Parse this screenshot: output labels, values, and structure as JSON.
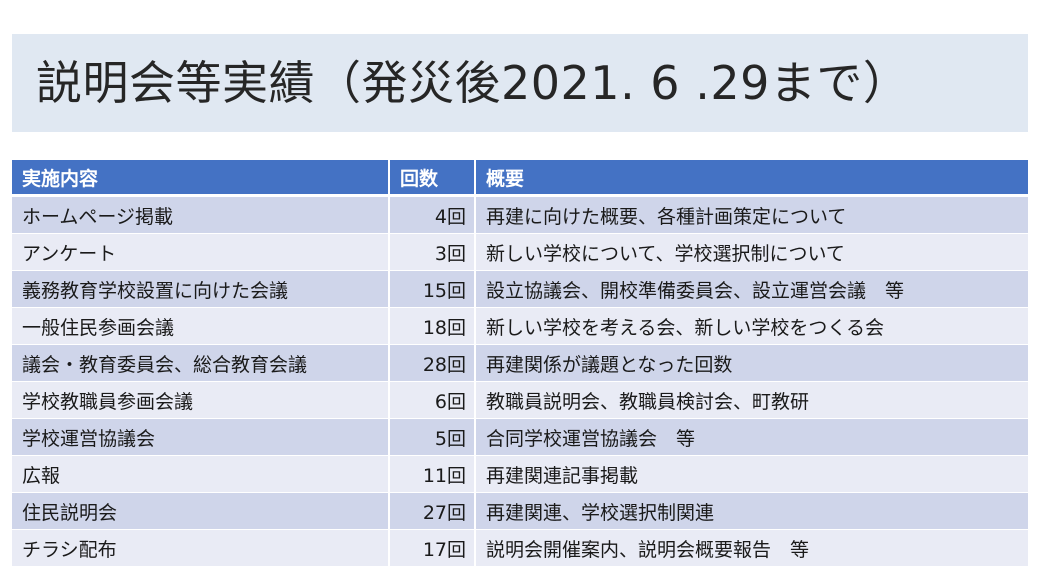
{
  "title": "説明会等実績（発災後2021. 6 .29まで）",
  "table": {
    "headers": [
      "実施内容",
      "回数",
      "概要"
    ],
    "rows": [
      {
        "item": "ホームページ掲載",
        "count": "4回",
        "summary": "再建に向けた概要、各種計画策定について"
      },
      {
        "item": "アンケート",
        "count": "3回",
        "summary": "新しい学校について、学校選択制について"
      },
      {
        "item": "義務教育学校設置に向けた会議",
        "count": "15回",
        "summary": "設立協議会、開校準備委員会、設立運営会議　等"
      },
      {
        "item": "一般住民参画会議",
        "count": "18回",
        "summary": "新しい学校を考える会、新しい学校をつくる会"
      },
      {
        "item": "議会・教育委員会、総合教育会議",
        "count": "28回",
        "summary": "再建関係が議題となった回数"
      },
      {
        "item": "学校教職員参画会議",
        "count": "6回",
        "summary": "教職員説明会、教職員検討会、町教研"
      },
      {
        "item": "学校運営協議会",
        "count": "5回",
        "summary": "合同学校運営協議会　等"
      },
      {
        "item": "広報",
        "count": "11回",
        "summary": "再建関連記事掲載"
      },
      {
        "item": "住民説明会",
        "count": "27回",
        "summary": "再建関連、学校選択制関連"
      },
      {
        "item": "チラシ配布",
        "count": "17回",
        "summary": "説明会開催案内、説明会概要報告　等"
      }
    ]
  },
  "colors": {
    "header_bg": "#4472c4",
    "row_odd": "#cfd5ea",
    "row_even": "#e9ebf5",
    "title_band": "#e0e8f2"
  }
}
